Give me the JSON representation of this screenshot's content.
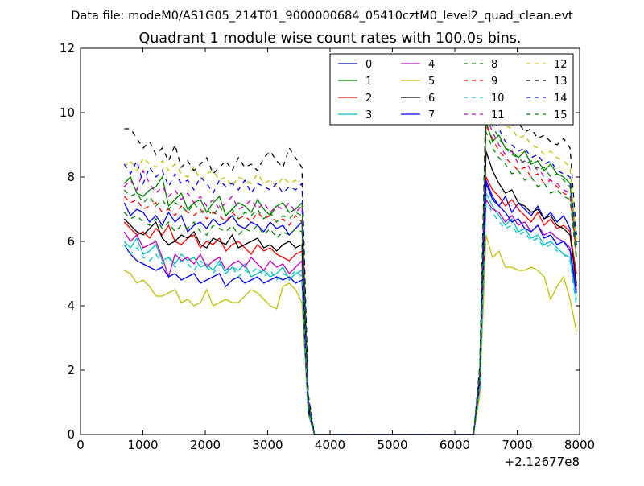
{
  "suptitle": "Data file: modeM0/AS1G05_214T01_9000000684_05410cztM0_level2_quad_clean.evt",
  "chart_data": {
    "type": "line",
    "title": "Quadrant 1 module wise count rates with 100.0s bins.",
    "xlabel": "",
    "ylabel": "",
    "x_offset_label": "+2.12677e8",
    "xlim": [
      0,
      8000
    ],
    "ylim": [
      0,
      12
    ],
    "xticks": [
      "0",
      "1000",
      "2000",
      "3000",
      "4000",
      "5000",
      "6000",
      "7000",
      "8000"
    ],
    "yticks": [
      "0",
      "2",
      "4",
      "6",
      "8",
      "10",
      "12"
    ],
    "grid": false,
    "legend_position": "top-right",
    "legend_columns": 4,
    "active_segments": [
      [
        700,
        3550
      ],
      [
        6500,
        7950
      ]
    ],
    "series": [
      {
        "name": "0",
        "color": "#0000ff",
        "dash": "solid",
        "segA": [
          7.2,
          6.8,
          7.0,
          6.9,
          6.6,
          6.8,
          6.5,
          6.9,
          6.6,
          6.8,
          6.3,
          6.5,
          6.6,
          6.4,
          6.7,
          6.5,
          6.6,
          6.8,
          6.5,
          6.4,
          6.6,
          6.5,
          6.3,
          6.6,
          6.4,
          6.5,
          6.2,
          6.4,
          6.6
        ],
        "segB": [
          7.8,
          7.3,
          7.1,
          7.4,
          6.9,
          7.2,
          7.0,
          6.8,
          7.1,
          6.7,
          6.9,
          6.6,
          6.8,
          6.4,
          4.6
        ]
      },
      {
        "name": "1",
        "color": "#008000",
        "dash": "solid",
        "segA": [
          7.8,
          8.0,
          7.5,
          7.4,
          7.6,
          7.7,
          8.0,
          7.1,
          7.3,
          7.5,
          7.0,
          7.2,
          7.3,
          6.9,
          7.2,
          7.4,
          6.8,
          7.0,
          7.2,
          7.1,
          6.9,
          7.3,
          7.0,
          6.8,
          7.1,
          7.2,
          6.9,
          7.0,
          7.2
        ],
        "segB": [
          9.7,
          9.1,
          9.3,
          8.9,
          8.8,
          8.6,
          8.8,
          8.4,
          8.5,
          8.2,
          8.4,
          8.1,
          8.0,
          7.8,
          5.5
        ]
      },
      {
        "name": "2",
        "color": "#ff0000",
        "dash": "solid",
        "segA": [
          6.6,
          6.4,
          6.2,
          6.3,
          6.1,
          6.4,
          6.2,
          6.5,
          6.0,
          5.9,
          6.1,
          6.2,
          5.8,
          6.0,
          5.9,
          6.1,
          5.7,
          5.9,
          6.0,
          5.8,
          5.6,
          5.9,
          5.7,
          5.8,
          5.6,
          5.5,
          5.4,
          5.6,
          5.7
        ],
        "segB": [
          8.0,
          7.6,
          7.4,
          7.1,
          7.3,
          7.0,
          6.8,
          6.6,
          6.9,
          6.5,
          6.7,
          6.4,
          6.5,
          6.3,
          5.0
        ]
      },
      {
        "name": "3",
        "color": "#00bfbf",
        "dash": "solid",
        "segA": [
          6.0,
          5.8,
          6.1,
          5.6,
          5.7,
          5.9,
          5.4,
          5.5,
          5.3,
          5.6,
          5.4,
          5.5,
          5.2,
          5.3,
          5.1,
          5.4,
          5.0,
          5.2,
          5.1,
          5.3,
          4.9,
          5.0,
          5.1,
          4.9,
          5.0,
          5.2,
          4.8,
          5.0,
          5.1
        ],
        "segB": [
          7.5,
          7.1,
          6.8,
          6.5,
          6.7,
          6.3,
          6.4,
          6.1,
          6.2,
          5.9,
          6.0,
          5.8,
          5.6,
          5.5,
          4.2
        ]
      },
      {
        "name": "4",
        "color": "#bf00bf",
        "dash": "solid",
        "segA": [
          6.3,
          6.0,
          6.2,
          5.8,
          5.9,
          6.0,
          5.5,
          4.9,
          5.6,
          5.4,
          5.5,
          5.3,
          5.6,
          5.2,
          5.4,
          5.5,
          5.1,
          5.3,
          5.4,
          5.2,
          5.5,
          5.3,
          5.1,
          5.4,
          5.2,
          5.3,
          5.0,
          5.2,
          5.4
        ],
        "segB": [
          7.3,
          7.0,
          6.9,
          6.6,
          6.8,
          6.5,
          6.6,
          6.3,
          6.5,
          6.2,
          6.3,
          6.1,
          6.0,
          5.8,
          4.5
        ]
      },
      {
        "name": "5",
        "color": "#bfbf00",
        "dash": "solid",
        "segA": [
          5.1,
          5.0,
          4.7,
          4.8,
          4.6,
          4.3,
          4.3,
          4.4,
          4.5,
          4.1,
          4.2,
          4.0,
          4.1,
          4.5,
          4.0,
          4.1,
          4.2,
          4.1,
          4.1,
          4.3,
          4.5,
          4.4,
          4.2,
          4.0,
          3.9,
          4.6,
          4.7,
          4.5,
          4.1
        ],
        "segB": [
          6.2,
          5.5,
          5.7,
          5.2,
          5.2,
          5.1,
          5.1,
          5.2,
          5.1,
          4.9,
          4.2,
          4.6,
          4.9,
          4.2,
          3.2
        ]
      },
      {
        "name": "6",
        "color": "#000000",
        "dash": "solid",
        "segA": [
          6.7,
          6.5,
          6.3,
          6.2,
          6.4,
          6.6,
          6.1,
          5.9,
          6.0,
          6.2,
          6.1,
          6.3,
          5.9,
          5.8,
          6.1,
          6.0,
          5.9,
          6.2,
          5.8,
          5.9,
          6.0,
          6.1,
          5.8,
          5.9,
          5.7,
          5.9,
          6.0,
          5.8,
          5.9
        ],
        "segB": [
          8.8,
          8.2,
          7.8,
          7.5,
          7.6,
          7.2,
          7.1,
          6.9,
          7.0,
          6.7,
          6.8,
          6.5,
          6.4,
          6.2,
          4.7
        ]
      },
      {
        "name": "7",
        "color": "#0000ff",
        "dash": "solid",
        "segA": [
          5.9,
          5.6,
          5.4,
          5.3,
          5.2,
          5.1,
          5.2,
          4.9,
          5.0,
          4.8,
          4.9,
          5.0,
          4.7,
          4.8,
          4.9,
          5.0,
          4.6,
          4.8,
          4.9,
          4.7,
          4.8,
          4.9,
          4.7,
          4.8,
          4.9,
          4.8,
          4.9,
          4.7,
          4.8
        ],
        "segB": [
          7.9,
          7.4,
          7.1,
          6.9,
          6.6,
          6.7,
          6.4,
          6.3,
          6.5,
          6.1,
          6.2,
          5.9,
          6.0,
          5.7,
          4.4
        ]
      },
      {
        "name": "8",
        "color": "#008000",
        "dash": "dashed",
        "segA": [
          6.9,
          6.7,
          6.8,
          6.6,
          6.5,
          6.7,
          6.4,
          6.6,
          6.3,
          6.5,
          6.4,
          6.6,
          6.3,
          6.2,
          6.5,
          6.4,
          6.3,
          6.5,
          6.2,
          6.4,
          6.3,
          6.5,
          6.2,
          6.4,
          6.1,
          6.3,
          6.2,
          6.4,
          6.3
        ],
        "segB": [
          9.4,
          8.9,
          8.6,
          8.4,
          8.1,
          8.2,
          7.9,
          8.0,
          7.7,
          7.8,
          7.5,
          7.6,
          7.4,
          7.3,
          5.4
        ]
      },
      {
        "name": "9",
        "color": "#ff0000",
        "dash": "dashed",
        "segA": [
          7.4,
          7.2,
          7.3,
          7.0,
          7.1,
          7.2,
          6.9,
          7.0,
          6.8,
          7.1,
          6.9,
          6.8,
          7.0,
          6.7,
          6.9,
          6.8,
          6.6,
          6.9,
          6.7,
          6.8,
          6.6,
          6.9,
          6.7,
          6.8,
          6.6,
          6.7,
          6.5,
          6.8,
          6.6
        ],
        "segB": [
          9.6,
          9.2,
          8.8,
          8.6,
          8.4,
          8.2,
          8.3,
          8.0,
          8.1,
          7.8,
          7.9,
          7.7,
          7.5,
          7.4,
          5.6
        ]
      },
      {
        "name": "10",
        "color": "#00bfbf",
        "dash": "dashed",
        "segA": [
          5.9,
          5.6,
          5.8,
          5.5,
          5.4,
          5.6,
          5.3,
          5.5,
          5.2,
          5.4,
          5.3,
          5.1,
          5.4,
          5.2,
          5.0,
          5.3,
          5.1,
          5.2,
          4.9,
          5.1,
          5.0,
          5.2,
          4.9,
          5.1,
          4.8,
          5.0,
          4.9,
          5.1,
          4.9
        ],
        "segB": [
          7.2,
          6.9,
          6.6,
          6.4,
          6.5,
          6.2,
          6.3,
          6.0,
          6.1,
          5.8,
          5.9,
          5.7,
          5.6,
          5.4,
          4.0
        ]
      },
      {
        "name": "11",
        "color": "#bf00bf",
        "dash": "dashed",
        "segA": [
          7.7,
          7.9,
          7.6,
          8.2,
          7.8,
          7.5,
          7.7,
          7.4,
          7.6,
          7.3,
          7.5,
          7.2,
          7.4,
          7.1,
          7.3,
          7.0,
          7.2,
          7.4,
          7.0,
          7.1,
          7.3,
          7.0,
          7.2,
          6.9,
          7.1,
          7.0,
          7.2,
          6.9,
          7.1
        ],
        "segB": [
          9.9,
          9.4,
          9.0,
          8.7,
          8.8,
          8.4,
          8.5,
          8.2,
          8.3,
          8.0,
          7.9,
          7.8,
          7.6,
          7.5,
          5.6
        ]
      },
      {
        "name": "12",
        "color": "#bfbf00",
        "dash": "dashed",
        "segA": [
          8.3,
          8.5,
          8.2,
          8.6,
          8.4,
          8.3,
          8.5,
          8.2,
          8.4,
          8.1,
          8.0,
          8.3,
          7.9,
          8.1,
          8.2,
          7.9,
          8.0,
          7.7,
          8.0,
          7.9,
          7.8,
          8.1,
          7.8,
          7.9,
          7.7,
          8.0,
          7.8,
          7.9,
          7.8
        ],
        "segB": [
          10.9,
          10.3,
          9.8,
          9.6,
          9.5,
          9.2,
          9.3,
          9.0,
          8.9,
          8.7,
          8.8,
          8.6,
          8.5,
          8.3,
          6.0
        ]
      },
      {
        "name": "13",
        "color": "#000000",
        "dash": "dashed",
        "segA": [
          9.5,
          9.5,
          9.2,
          8.9,
          9.1,
          8.7,
          8.9,
          8.5,
          9.0,
          8.3,
          8.5,
          8.2,
          8.4,
          8.6,
          8.1,
          8.3,
          8.5,
          8.2,
          8.6,
          8.3,
          8.4,
          8.2,
          8.6,
          8.8,
          8.5,
          8.3,
          8.9,
          8.6,
          8.3
        ],
        "segB": [
          10.6,
          10.2,
          9.8,
          9.9,
          9.6,
          9.7,
          9.4,
          9.5,
          9.2,
          9.3,
          9.1,
          9.0,
          9.2,
          8.9,
          6.2
        ]
      },
      {
        "name": "14",
        "color": "#0000ff",
        "dash": "dashed",
        "segA": [
          8.4,
          8.1,
          8.5,
          7.8,
          8.3,
          8.0,
          8.2,
          7.7,
          8.1,
          7.8,
          7.9,
          7.6,
          8.0,
          7.8,
          7.5,
          7.9,
          7.7,
          7.8,
          7.6,
          7.9,
          7.5,
          7.8,
          7.7,
          7.6,
          7.8,
          7.5,
          7.7,
          7.6,
          7.8
        ],
        "segB": [
          10.4,
          9.8,
          9.5,
          9.1,
          9.0,
          8.8,
          8.9,
          8.6,
          8.7,
          8.4,
          8.5,
          8.2,
          8.1,
          8.0,
          5.9
        ]
      },
      {
        "name": "15",
        "color": "#008000",
        "dash": "dashed",
        "segA": [
          7.6,
          7.4,
          7.5,
          7.2,
          7.4,
          7.1,
          7.3,
          7.0,
          7.2,
          7.1,
          6.9,
          7.2,
          6.9,
          7.0,
          6.8,
          7.1,
          6.8,
          7.0,
          6.7,
          6.9,
          6.8,
          7.0,
          6.7,
          6.9,
          6.6,
          6.8,
          6.7,
          6.9,
          6.8
        ],
        "segB": [
          10.1,
          9.6,
          9.2,
          8.9,
          8.7,
          8.6,
          8.4,
          8.5,
          8.2,
          8.3,
          8.0,
          8.1,
          7.9,
          7.7,
          5.7
        ]
      }
    ]
  }
}
